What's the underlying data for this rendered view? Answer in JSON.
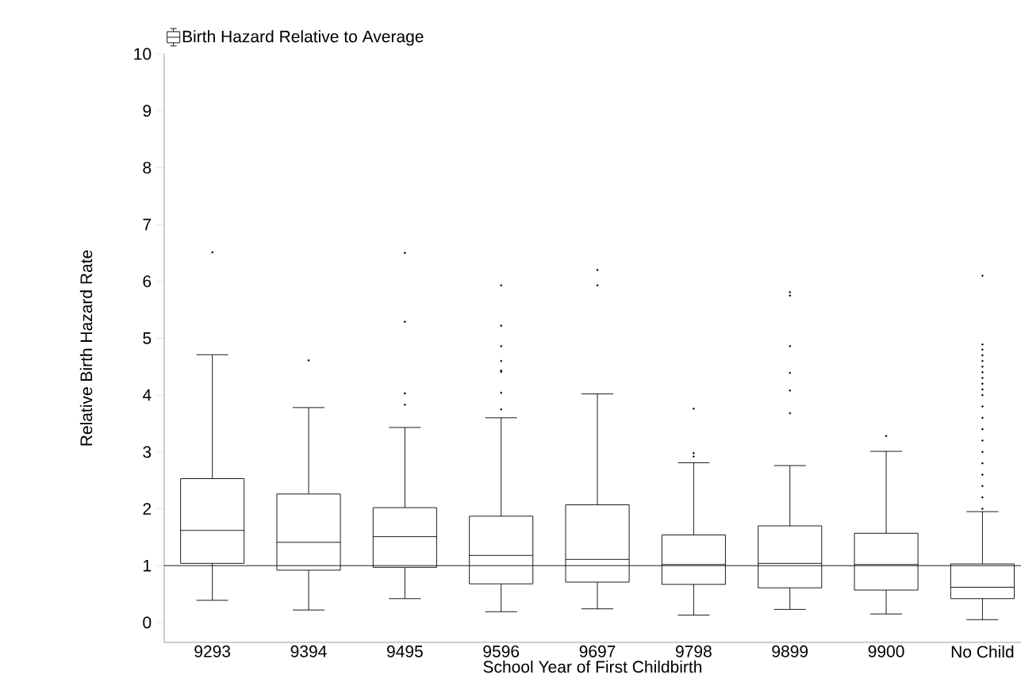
{
  "chart_data": {
    "type": "box",
    "xlabel": "School Year of First Childbirth",
    "ylabel": "Relative Birth Hazard Rate",
    "categories": [
      "9293",
      "9394",
      "9495",
      "9596",
      "9697",
      "9798",
      "9899",
      "9900",
      "No Child"
    ],
    "ylim": [
      -0.35,
      10
    ],
    "yticks": [
      0,
      1,
      2,
      3,
      4,
      5,
      6,
      7,
      8,
      9,
      10
    ],
    "legend": "top left",
    "marker": "circle",
    "ref_lines": [
      {
        "axis": "y",
        "value": 1
      }
    ],
    "series": [
      {
        "name": "Birth Hazard Relative to Average",
        "color": "#000000",
        "boxes": [
          {
            "low": 0.39,
            "q1": 1.04,
            "median": 1.62,
            "q3": 2.53,
            "high": 4.71,
            "outliers": [
              6.51
            ]
          },
          {
            "low": 0.22,
            "q1": 0.92,
            "median": 1.41,
            "q3": 2.26,
            "high": 3.78,
            "outliers": [
              4.61
            ]
          },
          {
            "low": 0.42,
            "q1": 0.97,
            "median": 1.51,
            "q3": 2.02,
            "high": 3.43,
            "outliers": [
              6.5,
              5.29,
              4.03,
              3.83
            ]
          },
          {
            "low": 0.19,
            "q1": 0.68,
            "median": 1.18,
            "q3": 1.87,
            "high": 3.6,
            "outliers": [
              5.93,
              5.22,
              4.86,
              4.6,
              4.43,
              4.41,
              4.04,
              3.75
            ]
          },
          {
            "low": 0.24,
            "q1": 0.71,
            "median": 1.11,
            "q3": 2.07,
            "high": 4.02,
            "outliers": [
              6.2,
              5.93
            ]
          },
          {
            "low": 0.13,
            "q1": 0.67,
            "median": 1.02,
            "q3": 1.54,
            "high": 2.81,
            "outliers": [
              3.76,
              2.98,
              2.92
            ]
          },
          {
            "low": 0.23,
            "q1": 0.61,
            "median": 1.04,
            "q3": 1.7,
            "high": 2.76,
            "outliers": [
              5.81,
              5.75,
              4.86,
              4.39,
              4.08,
              3.68
            ]
          },
          {
            "low": 0.15,
            "q1": 0.57,
            "median": 1.02,
            "q3": 1.57,
            "high": 3.01,
            "outliers": [
              3.28
            ]
          },
          {
            "low": 0.05,
            "q1": 0.42,
            "median": 0.62,
            "q3": 1.03,
            "high": 1.95,
            "outliers": [
              6.1,
              4.89,
              4.8,
              4.7,
              4.6,
              4.5,
              4.4,
              4.3,
              4.2,
              4.1,
              4.0,
              3.8,
              3.6,
              3.4,
              3.2,
              3.0,
              2.8,
              2.6,
              2.4,
              2.2,
              2.0
            ]
          }
        ]
      }
    ]
  }
}
